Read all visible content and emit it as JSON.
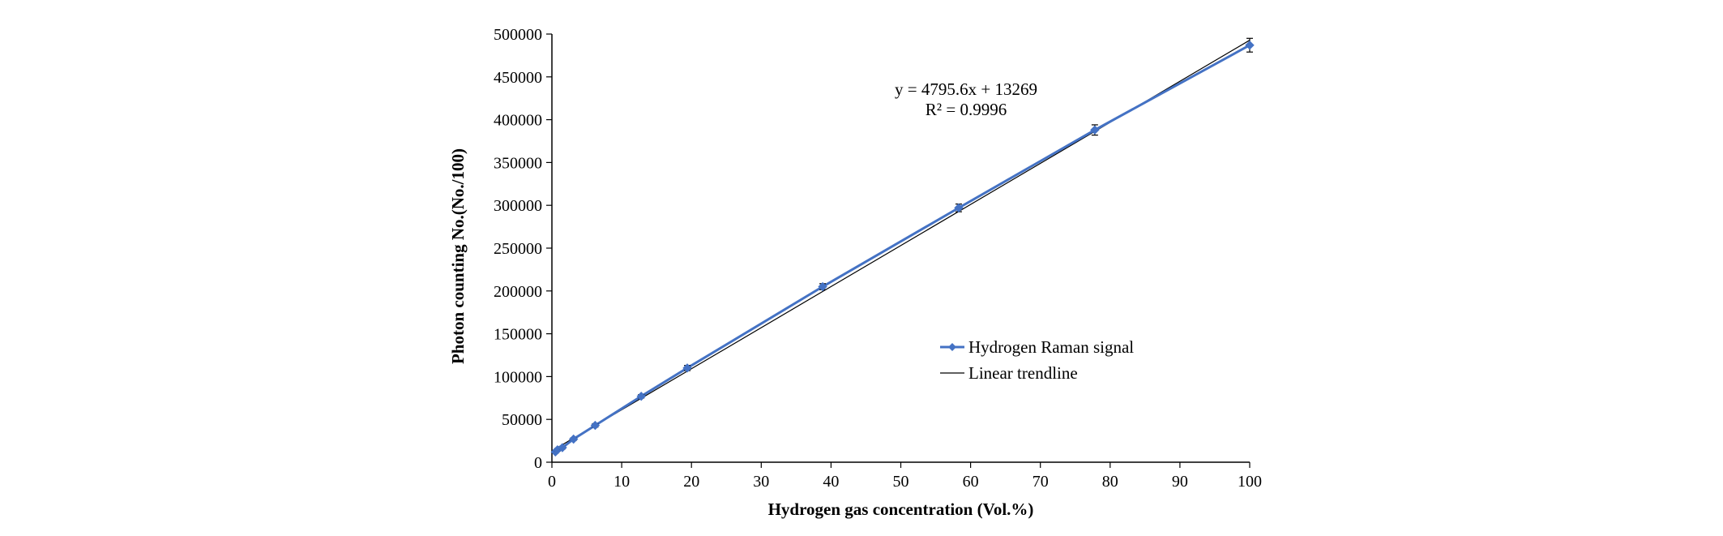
{
  "chart_data": {
    "type": "line",
    "title": "",
    "xlabel": "Hydrogen gas concentration (Vol.%)",
    "ylabel": "Photon counting No.(No./100)",
    "xlim": [
      0,
      100
    ],
    "ylim": [
      0,
      500000
    ],
    "x_ticks": [
      0,
      10,
      20,
      30,
      40,
      50,
      60,
      70,
      80,
      90,
      100
    ],
    "y_ticks": [
      0,
      50000,
      100000,
      150000,
      200000,
      250000,
      300000,
      350000,
      400000,
      450000,
      500000
    ],
    "x_tick_labels": [
      "0",
      "10",
      "20",
      "30",
      "40",
      "50",
      "60",
      "70",
      "80",
      "90",
      "100"
    ],
    "y_tick_labels": [
      "0",
      "50000",
      "100000",
      "150000",
      "200000",
      "250000",
      "300000",
      "350000",
      "400000",
      "450000",
      "500000"
    ],
    "grid": false,
    "series": [
      {
        "name": "Hydrogen Raman signal",
        "color": "#4472c4",
        "marker": "diamond",
        "x": [
          0.5,
          0.8,
          1.5,
          3.1,
          6.2,
          12.8,
          19.4,
          38.8,
          58.3,
          77.8,
          100
        ],
        "y": [
          12000,
          14500,
          17000,
          27000,
          43000,
          77000,
          110000,
          205000,
          297000,
          388000,
          487000
        ],
        "error": [
          1500,
          1500,
          1500,
          1500,
          2000,
          2000,
          3000,
          3500,
          4500,
          6000,
          8000
        ]
      }
    ],
    "trendline": {
      "name": "Linear trendline",
      "color": "#000000",
      "slope": 4795.6,
      "intercept": 13269,
      "x_range": [
        0,
        100
      ]
    },
    "annotations": {
      "equation": "y = 4795.6x + 13269",
      "r_squared": "R² = 0.9996"
    },
    "legend": {
      "placement": "center-right",
      "entries": [
        "Hydrogen Raman signal",
        "Linear trendline"
      ]
    }
  }
}
